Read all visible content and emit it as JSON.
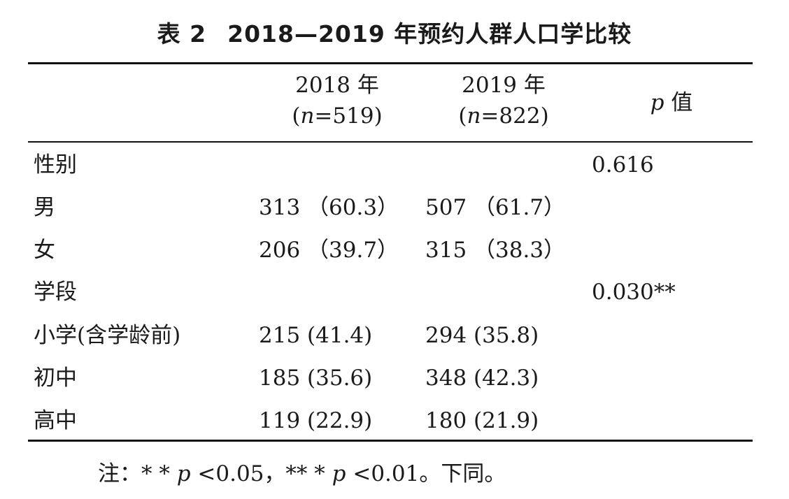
{
  "table": {
    "label": "表 2",
    "title": "2018—2019 年预约人群人口学比较",
    "header": {
      "col2018_line1": "2018 年",
      "col2018_n": "519",
      "col2019_line1": "2019 年",
      "col2019_n": "822",
      "pval_letter": "p",
      "pval_word": "值",
      "n_letter": "n"
    },
    "rows": [
      {
        "label": "性别",
        "v2018": "",
        "v2019": "",
        "p": "0.616"
      },
      {
        "label": "男",
        "v2018": "313 （60.3）",
        "v2019": "507 （61.7）",
        "p": ""
      },
      {
        "label": "女",
        "v2018": "206 （39.7）",
        "v2019": "315 （38.3）",
        "p": ""
      },
      {
        "label": "学段",
        "v2018": "",
        "v2019": "",
        "p": "0.030**"
      },
      {
        "label": "小学(含学龄前)",
        "v2018": "215 (41.4)",
        "v2019": "294 (35.8)",
        "p": ""
      },
      {
        "label": "初中",
        "v2018": "185 (35.6)",
        "v2019": "348 (42.3)",
        "p": ""
      },
      {
        "label": "高中",
        "v2018": "119 (22.9)",
        "v2019": "180 (21.9)",
        "p": ""
      }
    ],
    "note": {
      "prefix": "注：* * ",
      "p1": "p",
      "mid": " <0.05，** * ",
      "p2": "p",
      "suffix": " <0.01。下同。"
    }
  }
}
